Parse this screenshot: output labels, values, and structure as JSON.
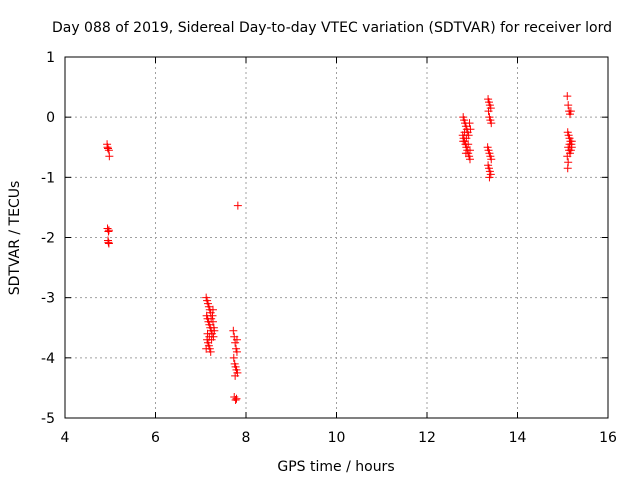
{
  "chart_data": {
    "type": "scatter",
    "title": "Day 088 of 2019, Sidereal Day-to-day VTEC variation (SDTVAR) for receiver lord",
    "xlabel": "GPS time / hours",
    "ylabel": "SDTVAR / TECUs",
    "xlim": [
      4,
      16
    ],
    "ylim": [
      -5,
      1
    ],
    "xticks": [
      4,
      6,
      8,
      10,
      12,
      14,
      16
    ],
    "yticks": [
      -5,
      -4,
      -3,
      -2,
      -1,
      0,
      1
    ],
    "grid": true,
    "marker": "+",
    "marker_color": "#ff0000",
    "series": [
      {
        "name": "SDTVAR",
        "points": [
          [
            4.93,
            -0.45
          ],
          [
            4.95,
            -0.52
          ],
          [
            4.97,
            -0.55
          ],
          [
            4.98,
            -0.65
          ],
          [
            4.94,
            -0.5
          ],
          [
            4.94,
            -1.85
          ],
          [
            4.96,
            -1.9
          ],
          [
            4.97,
            -1.88
          ],
          [
            4.95,
            -2.05
          ],
          [
            4.97,
            -2.1
          ],
          [
            4.96,
            -2.08
          ],
          [
            7.12,
            -3.0
          ],
          [
            7.14,
            -3.05
          ],
          [
            7.16,
            -3.1
          ],
          [
            7.18,
            -3.15
          ],
          [
            7.2,
            -3.2
          ],
          [
            7.22,
            -3.25
          ],
          [
            7.13,
            -3.3
          ],
          [
            7.15,
            -3.35
          ],
          [
            7.17,
            -3.4
          ],
          [
            7.19,
            -3.45
          ],
          [
            7.21,
            -3.5
          ],
          [
            7.23,
            -3.55
          ],
          [
            7.25,
            -3.6
          ],
          [
            7.27,
            -3.4
          ],
          [
            7.29,
            -3.5
          ],
          [
            7.26,
            -3.3
          ],
          [
            7.28,
            -3.65
          ],
          [
            7.14,
            -3.7
          ],
          [
            7.16,
            -3.75
          ],
          [
            7.18,
            -3.8
          ],
          [
            7.2,
            -3.85
          ],
          [
            7.22,
            -3.9
          ],
          [
            7.12,
            -3.85
          ],
          [
            7.24,
            -3.7
          ],
          [
            7.27,
            -3.2
          ],
          [
            7.3,
            -3.55
          ],
          [
            7.15,
            -3.6
          ],
          [
            7.19,
            -3.65
          ],
          [
            7.23,
            -3.35
          ],
          [
            7.72,
            -3.55
          ],
          [
            7.74,
            -3.65
          ],
          [
            7.76,
            -3.75
          ],
          [
            7.78,
            -3.85
          ],
          [
            7.8,
            -3.9
          ],
          [
            7.73,
            -4.0
          ],
          [
            7.75,
            -4.1
          ],
          [
            7.77,
            -4.15
          ],
          [
            7.79,
            -4.2
          ],
          [
            7.81,
            -4.25
          ],
          [
            7.76,
            -4.3
          ],
          [
            7.8,
            -3.7
          ],
          [
            7.74,
            -4.65
          ],
          [
            7.77,
            -4.7
          ],
          [
            7.79,
            -4.68
          ],
          [
            7.82,
            -1.47
          ],
          [
            12.8,
            -0.0
          ],
          [
            12.82,
            -0.05
          ],
          [
            12.84,
            -0.1
          ],
          [
            12.86,
            -0.15
          ],
          [
            12.88,
            -0.2
          ],
          [
            12.9,
            -0.25
          ],
          [
            12.79,
            -0.3
          ],
          [
            12.81,
            -0.35
          ],
          [
            12.83,
            -0.4
          ],
          [
            12.85,
            -0.45
          ],
          [
            12.87,
            -0.5
          ],
          [
            12.89,
            -0.55
          ],
          [
            12.91,
            -0.6
          ],
          [
            12.93,
            -0.65
          ],
          [
            12.95,
            -0.7
          ],
          [
            12.92,
            -0.3
          ],
          [
            12.94,
            -0.1
          ],
          [
            12.96,
            -0.2
          ],
          [
            12.83,
            -0.25
          ],
          [
            12.87,
            -0.35
          ],
          [
            12.91,
            -0.45
          ],
          [
            12.95,
            -0.55
          ],
          [
            12.8,
            -0.4
          ],
          [
            12.86,
            -0.6
          ],
          [
            13.35,
            0.3
          ],
          [
            13.37,
            0.25
          ],
          [
            13.39,
            0.2
          ],
          [
            13.41,
            0.15
          ],
          [
            13.36,
            0.1
          ],
          [
            13.38,
            0.0
          ],
          [
            13.4,
            -0.05
          ],
          [
            13.42,
            -0.1
          ],
          [
            13.34,
            -0.5
          ],
          [
            13.36,
            -0.55
          ],
          [
            13.38,
            -0.6
          ],
          [
            13.4,
            -0.65
          ],
          [
            13.42,
            -0.7
          ],
          [
            13.35,
            -0.8
          ],
          [
            13.37,
            -0.85
          ],
          [
            13.39,
            -0.9
          ],
          [
            13.41,
            -0.95
          ],
          [
            13.38,
            -1.0
          ],
          [
            15.1,
            0.35
          ],
          [
            15.12,
            0.2
          ],
          [
            15.14,
            0.1
          ],
          [
            15.16,
            0.05
          ],
          [
            15.18,
            0.1
          ],
          [
            15.11,
            -0.25
          ],
          [
            15.13,
            -0.3
          ],
          [
            15.15,
            -0.35
          ],
          [
            15.17,
            -0.4
          ],
          [
            15.19,
            -0.45
          ],
          [
            15.12,
            -0.5
          ],
          [
            15.14,
            -0.55
          ],
          [
            15.16,
            -0.6
          ],
          [
            15.18,
            -0.55
          ],
          [
            15.2,
            -0.5
          ],
          [
            15.1,
            -0.65
          ],
          [
            15.12,
            -0.75
          ],
          [
            15.11,
            -0.85
          ],
          [
            15.15,
            -0.45
          ],
          [
            15.2,
            -0.4
          ]
        ]
      }
    ]
  }
}
